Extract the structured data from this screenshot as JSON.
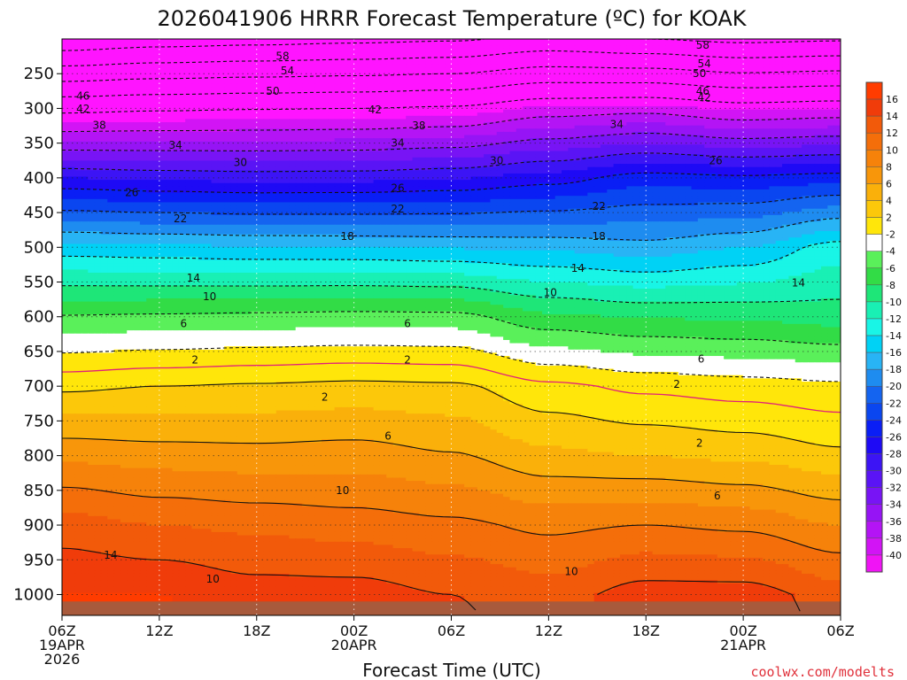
{
  "chart_data": {
    "type": "heatmap",
    "title": "2026041906 HRRR Forecast Temperature (ºC) for KOAK",
    "xlabel": "Forecast Time (UTC)",
    "ylabel": "",
    "credit": "coolwx.com/modelts",
    "x_hours_range": [
      0,
      48
    ],
    "y_pressure_range": [
      200,
      1030
    ],
    "x_ticks": [
      {
        "hour": 0,
        "lines": [
          "06Z",
          "19APR",
          "2026"
        ]
      },
      {
        "hour": 6,
        "lines": [
          "12Z"
        ]
      },
      {
        "hour": 12,
        "lines": [
          "18Z"
        ]
      },
      {
        "hour": 18,
        "lines": [
          "00Z",
          "20APR"
        ]
      },
      {
        "hour": 24,
        "lines": [
          "06Z"
        ]
      },
      {
        "hour": 30,
        "lines": [
          "12Z"
        ]
      },
      {
        "hour": 36,
        "lines": [
          "18Z"
        ]
      },
      {
        "hour": 42,
        "lines": [
          "00Z",
          "21APR"
        ]
      },
      {
        "hour": 48,
        "lines": [
          "06Z"
        ]
      }
    ],
    "y_ticks": [
      250,
      300,
      350,
      400,
      450,
      500,
      550,
      600,
      650,
      700,
      750,
      800,
      850,
      900,
      950,
      1000
    ],
    "colorbar": {
      "levels": [
        16,
        14,
        12,
        10,
        8,
        6,
        4,
        2,
        -2,
        -4,
        -6,
        -8,
        -10,
        -12,
        -14,
        -16,
        -18,
        -20,
        -22,
        -24,
        -26,
        -28,
        -30,
        -32,
        -34,
        -36,
        -38,
        -40
      ],
      "colors": [
        "#f03c0a",
        "#f25a0a",
        "#f46e0a",
        "#f6820a",
        "#f8960a",
        "#fab00a",
        "#fcc80a",
        "#ffe60a",
        "#ffffff",
        "#5af05a",
        "#32dc46",
        "#1ee678",
        "#19f0b4",
        "#19f5e6",
        "#00d2f5",
        "#28b4f5",
        "#1e8cf0",
        "#1464f0",
        "#0a46f0",
        "#0a1ef5",
        "#1e0af5",
        "#3c14f5",
        "#5a14f5",
        "#7814f5",
        "#9614f5",
        "#b414f5",
        "#d214f5",
        "#f014f5"
      ],
      "top_color": "#ff3c00",
      "bottom_color": "#ff14ff"
    },
    "ground_pressure": 1010,
    "profile_pressures": [
      1000,
      900,
      800,
      700,
      600,
      500,
      400,
      300,
      200
    ],
    "profiles": [
      {
        "hour": 0,
        "temps": [
          16,
          13,
          7.5,
          1.5,
          -5.8,
          -15.2,
          -28,
          -43,
          -61
        ]
      },
      {
        "hour": 6,
        "temps": [
          16,
          12,
          7,
          2,
          -5.6,
          -15.5,
          -28.5,
          -42.5,
          -60
        ]
      },
      {
        "hour": 12,
        "temps": [
          15,
          11.5,
          6.8,
          2.3,
          -5.4,
          -15.8,
          -28.8,
          -42.2,
          -59.5
        ]
      },
      {
        "hour": 18,
        "temps": [
          15,
          11,
          7,
          2.6,
          -5.2,
          -15.9,
          -28.7,
          -42,
          -59
        ]
      },
      {
        "hour": 24,
        "temps": [
          14,
          10.5,
          6.2,
          2.4,
          -5.3,
          -16.2,
          -28.2,
          -41.5,
          -58.5
        ]
      },
      {
        "hour": 30,
        "temps": [
          13,
          9.5,
          4.5,
          0.5,
          -7.5,
          -16.5,
          -27,
          -39.5,
          -57
        ]
      },
      {
        "hour": 36,
        "temps": [
          15,
          10,
          4,
          -0.5,
          -8.2,
          -17.2,
          -25,
          -39,
          -58
        ]
      },
      {
        "hour": 42,
        "temps": [
          15,
          9.5,
          3.5,
          -1,
          -8.4,
          -16,
          -25.5,
          -40.5,
          -59
        ]
      },
      {
        "hour": 48,
        "temps": [
          13,
          8,
          2.5,
          -1.5,
          -9,
          -13,
          -25,
          -40,
          -58.5
        ]
      }
    ],
    "contour_labels": [
      {
        "hour": 13.6,
        "p": 225,
        "text": "58"
      },
      {
        "hour": 39.5,
        "p": 209,
        "text": "58"
      },
      {
        "hour": 13.9,
        "p": 246,
        "text": "54"
      },
      {
        "hour": 39.6,
        "p": 236,
        "text": "54"
      },
      {
        "hour": 13.0,
        "p": 275,
        "text": "50"
      },
      {
        "hour": 39.3,
        "p": 250,
        "text": "50"
      },
      {
        "hour": 1.3,
        "p": 282,
        "text": "46"
      },
      {
        "hour": 39.5,
        "p": 275,
        "text": "46"
      },
      {
        "hour": 1.3,
        "p": 301,
        "text": "42"
      },
      {
        "hour": 19.3,
        "p": 302,
        "text": "42"
      },
      {
        "hour": 39.6,
        "p": 284,
        "text": "42"
      },
      {
        "hour": 2.3,
        "p": 324,
        "text": "38"
      },
      {
        "hour": 22.0,
        "p": 325,
        "text": "38"
      },
      {
        "hour": 34.2,
        "p": 323,
        "text": "34"
      },
      {
        "hour": 7.0,
        "p": 353,
        "text": "34"
      },
      {
        "hour": 20.7,
        "p": 350,
        "text": "34"
      },
      {
        "hour": 11.0,
        "p": 378,
        "text": "30"
      },
      {
        "hour": 26.8,
        "p": 375,
        "text": "30"
      },
      {
        "hour": 40.3,
        "p": 375,
        "text": "26"
      },
      {
        "hour": 4.3,
        "p": 421,
        "text": "26"
      },
      {
        "hour": 20.7,
        "p": 415,
        "text": "26"
      },
      {
        "hour": 7.3,
        "p": 459,
        "text": "22"
      },
      {
        "hour": 20.7,
        "p": 445,
        "text": "22"
      },
      {
        "hour": 33.1,
        "p": 441,
        "text": "22"
      },
      {
        "hour": 17.6,
        "p": 484,
        "text": "18"
      },
      {
        "hour": 33.1,
        "p": 484,
        "text": "18"
      },
      {
        "hour": 8.1,
        "p": 544,
        "text": "14"
      },
      {
        "hour": 31.8,
        "p": 530,
        "text": "14"
      },
      {
        "hour": 45.4,
        "p": 551,
        "text": "14"
      },
      {
        "hour": 9.1,
        "p": 571,
        "text": "10"
      },
      {
        "hour": 30.1,
        "p": 565,
        "text": "10"
      },
      {
        "hour": 7.5,
        "p": 610,
        "text": "6"
      },
      {
        "hour": 21.3,
        "p": 610,
        "text": "6"
      },
      {
        "hour": 39.4,
        "p": 661,
        "text": "6"
      },
      {
        "hour": 8.2,
        "p": 662,
        "text": "2"
      },
      {
        "hour": 21.3,
        "p": 662,
        "text": "2"
      },
      {
        "hour": 37.9,
        "p": 697,
        "text": "2"
      },
      {
        "hour": 16.2,
        "p": 716,
        "text": "2"
      },
      {
        "hour": 20.1,
        "p": 772,
        "text": "6"
      },
      {
        "hour": 39.3,
        "p": 782,
        "text": "2"
      },
      {
        "hour": 17.3,
        "p": 850,
        "text": "10"
      },
      {
        "hour": 40.4,
        "p": 858,
        "text": "6"
      },
      {
        "hour": 3.0,
        "p": 943,
        "text": "14"
      },
      {
        "hour": 9.3,
        "p": 978,
        "text": "10"
      },
      {
        "hour": 31.4,
        "p": 967,
        "text": "10"
      }
    ]
  }
}
